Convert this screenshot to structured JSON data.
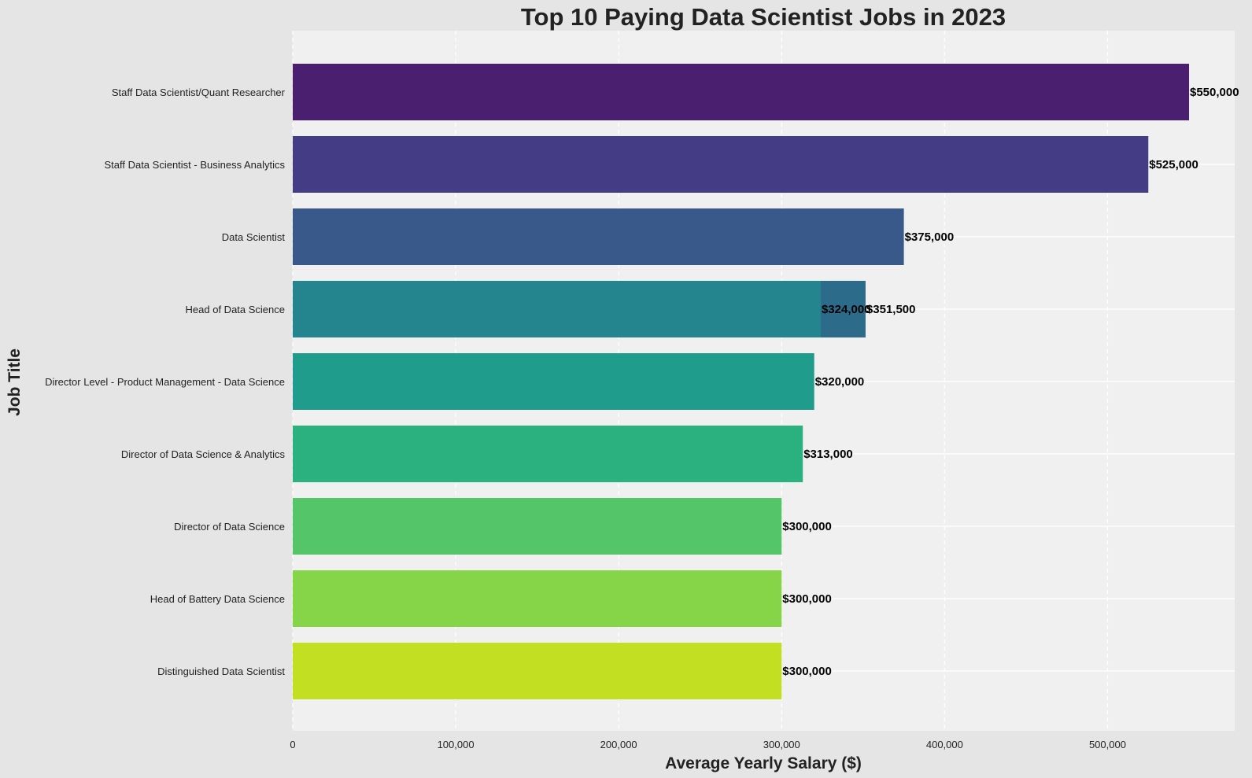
{
  "chart_data": {
    "type": "bar",
    "orientation": "horizontal",
    "title": "Top 10 Paying Data Scientist Jobs in 2023",
    "xlabel": "Average Yearly Salary ($)",
    "ylabel": "Job Title",
    "xlim": [
      0,
      578000
    ],
    "xticks": [
      0,
      100000,
      200000,
      300000,
      400000,
      500000
    ],
    "xtick_labels": [
      "0",
      "100,000",
      "200,000",
      "300,000",
      "400,000",
      "500,000"
    ],
    "grid": true,
    "bars": [
      {
        "category": "Staff Data Scientist/Quant Researcher",
        "value": 550000,
        "label": "$550,000",
        "color": "#4a1f6f"
      },
      {
        "category": "Staff Data Scientist - Business Analytics",
        "value": 525000,
        "label": "$525,000",
        "color": "#443d86"
      },
      {
        "category": "Data Scientist",
        "value": 375000,
        "label": "$375,000",
        "color": "#38598a"
      },
      {
        "category": "Head of Data Science",
        "value": 351500,
        "label": "$351,500",
        "color": "#2c6b8a"
      },
      {
        "category": "Head of Data Science",
        "value": 324000,
        "label": "$324,000",
        "color": "#25858e"
      },
      {
        "category": "Director Level - Product Management - Data Science",
        "value": 320000,
        "label": "$320,000",
        "color": "#1f9c8b"
      },
      {
        "category": "Director of Data Science & Analytics",
        "value": 313000,
        "label": "$313,000",
        "color": "#2bb07f"
      },
      {
        "category": "Director of Data Science",
        "value": 300000,
        "label": "$300,000",
        "color": "#54c568"
      },
      {
        "category": "Head of Battery Data Science",
        "value": 300000,
        "label": "$300,000",
        "color": "#86d549"
      },
      {
        "category": "Distinguished Data Scientist",
        "value": 300000,
        "label": "$300,000",
        "color": "#c2df22"
      }
    ],
    "categories": [
      "Staff Data Scientist/Quant Researcher",
      "Staff Data Scientist - Business Analytics",
      "Data Scientist",
      "Head of Data Science",
      "Director Level - Product Management - Data Science",
      "Director of Data Science & Analytics",
      "Director of Data Science",
      "Head of Battery Data Science",
      "Distinguished Data Scientist"
    ],
    "colors": {
      "figure_background": "#e5e5e5",
      "plot_background": "#f0f0f0",
      "grid": "#ffffff"
    }
  }
}
